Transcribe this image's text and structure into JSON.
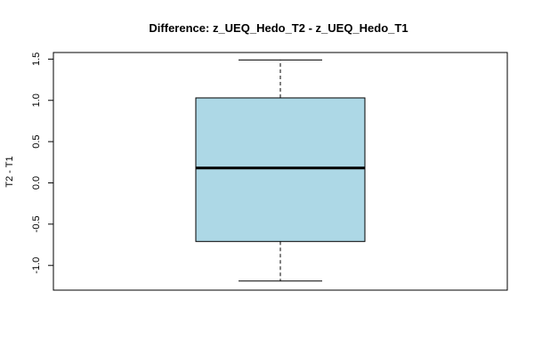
{
  "chart_data": {
    "type": "boxplot",
    "title": "Difference: z_UEQ_Hedo_T2 - z_UEQ_Hedo_T1",
    "ylabel": "T2 - T1",
    "xlabel": "",
    "ylim": [
      -1.3,
      1.58
    ],
    "yticks": [
      -1.0,
      -0.5,
      0.0,
      0.5,
      1.0,
      1.5
    ],
    "ytick_labels": [
      "-1.0",
      "-0.5",
      "0.0",
      "0.5",
      "1.0",
      "1.5"
    ],
    "grid": false,
    "box": {
      "whisker_low": -1.19,
      "q1": -0.71,
      "median": 0.18,
      "q3": 1.03,
      "whisker_high": 1.49
    },
    "colors": {
      "box_fill": "#add8e6",
      "stroke": "#000000"
    }
  }
}
